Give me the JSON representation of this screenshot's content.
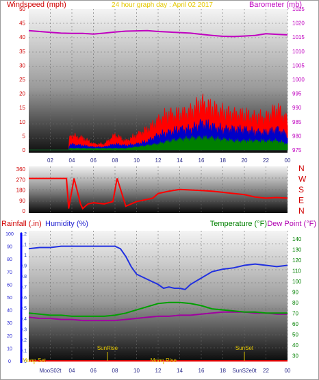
{
  "chart_data": [
    {
      "type": "line",
      "title": "24 hour graph day : April 02 2017",
      "left_axis_label": "Windspeed (mph)",
      "right_axis_label": "Barometer (mb)",
      "x_ticks": [
        "02",
        "04",
        "06",
        "08",
        "10",
        "12",
        "14",
        "16",
        "18",
        "20",
        "22",
        "00"
      ],
      "wind_ticks": [
        "0",
        "5",
        "10",
        "15",
        "20",
        "25",
        "30",
        "35",
        "40",
        "45",
        "50"
      ],
      "baro_ticks": [
        "975",
        "980",
        "985",
        "990",
        "995",
        "1000",
        "1005",
        "1010",
        "1015",
        "1020",
        "1025"
      ],
      "wind_ylim": [
        0,
        50
      ],
      "baro_ylim": [
        975,
        1025
      ],
      "x_hours": [
        0,
        24
      ],
      "barometer": {
        "color": "#c000c0",
        "x": [
          0,
          1,
          2,
          3,
          4,
          5,
          6,
          7,
          8,
          9,
          10,
          11,
          12,
          13,
          14,
          15,
          16,
          17,
          18,
          19,
          20,
          21,
          22,
          23,
          24
        ],
        "y": [
          1017.3,
          1017.0,
          1016.7,
          1016.4,
          1016.3,
          1016.3,
          1016.1,
          1016.4,
          1016.8,
          1017.1,
          1017.2,
          1017.3,
          1017.0,
          1016.8,
          1016.6,
          1016.4,
          1016.0,
          1015.6,
          1015.3,
          1015.2,
          1015.4,
          1015.6,
          1016.2,
          1016.0,
          1015.8
        ]
      },
      "wind_series": [
        {
          "name": "gust",
          "color": "#ff0000",
          "x": [
            0,
            3.7,
            3.8,
            5,
            6,
            7,
            8,
            9,
            10,
            11,
            12,
            13,
            14,
            15,
            16,
            17,
            18,
            19,
            20,
            21,
            22,
            23,
            24
          ],
          "y": [
            0,
            0,
            5,
            4,
            2,
            2,
            5,
            3,
            5,
            7,
            10,
            12,
            12,
            13,
            16,
            14,
            13,
            12,
            12,
            11,
            11,
            14,
            10
          ]
        },
        {
          "name": "average",
          "color": "#0000c8",
          "x": [
            0,
            3.7,
            3.8,
            5,
            6,
            7,
            8,
            9,
            10,
            11,
            12,
            13,
            14,
            15,
            16,
            17,
            18,
            19,
            20,
            21,
            22,
            23,
            24
          ],
          "y": [
            0,
            0,
            2,
            1.5,
            1,
            1,
            2,
            1.5,
            2,
            3,
            5,
            6,
            7,
            7,
            9,
            8,
            7,
            7,
            7,
            6,
            6,
            7,
            5
          ]
        },
        {
          "name": "lull",
          "color": "#008000",
          "x": [
            0,
            3.7,
            3.8,
            5,
            6,
            7,
            8,
            9,
            10,
            11,
            12,
            13,
            14,
            15,
            16,
            17,
            18,
            19,
            20,
            21,
            22,
            23,
            24
          ],
          "y": [
            0,
            0,
            0.5,
            0.5,
            0.5,
            0.5,
            0.5,
            0.5,
            1,
            1.5,
            2,
            3,
            3.5,
            4,
            4,
            4,
            3.5,
            3,
            3,
            3,
            3,
            3,
            2
          ]
        }
      ]
    },
    {
      "type": "line",
      "right_labels": [
        "N",
        "W",
        "S",
        "E",
        "N"
      ],
      "y_ticks": [
        "360",
        "270",
        "180",
        "90",
        "0"
      ],
      "ylim": [
        0,
        360
      ],
      "direction": {
        "color": "#ff0000",
        "x": [
          0,
          3.5,
          3.7,
          4.2,
          4.8,
          5,
          5.5,
          6,
          7,
          7.8,
          8.2,
          9,
          10,
          11,
          11.5,
          12,
          13,
          14,
          15,
          16,
          17,
          18,
          19,
          20,
          21,
          22,
          23,
          24
        ],
        "y": [
          280,
          280,
          20,
          280,
          60,
          20,
          60,
          70,
          60,
          80,
          280,
          40,
          80,
          100,
          110,
          150,
          170,
          185,
          180,
          175,
          170,
          160,
          150,
          140,
          120,
          110,
          115,
          110
        ]
      }
    },
    {
      "type": "line",
      "labels": {
        "rain": "Rainfall (.in)",
        "humidity": "Humidity (%)",
        "temperature": "Temperature (°F)",
        "dewpoint": "Dew Point (°F)"
      },
      "humidity_ticks": [
        "0",
        "10",
        "20",
        "30",
        "40",
        "50",
        "60",
        "70",
        "80",
        "90",
        "100"
      ],
      "rain_ticks": [
        "0",
        "0.1",
        "0.2",
        "0.3",
        "0.4",
        "0.5",
        "0.6",
        "0.7",
        "0.8",
        "0.9",
        "1",
        "1.1",
        "1.2"
      ],
      "temp_ticks": [
        "30",
        "40",
        "50",
        "60",
        "70",
        "80",
        "90",
        "100",
        "110",
        "120",
        "130",
        "140"
      ],
      "x_ticks": [
        "02",
        "04",
        "06",
        "08",
        "10",
        "12",
        "14",
        "16",
        "18",
        "20",
        "22",
        "00"
      ],
      "humidity_ylim": [
        0,
        100
      ],
      "rain_ylim": [
        0,
        1.2
      ],
      "temp_ylim": [
        25,
        145
      ],
      "humidity": {
        "color": "#2030e0",
        "x": [
          0,
          1,
          2,
          3,
          4,
          5,
          6,
          7,
          8,
          8.5,
          9,
          9.5,
          10,
          11,
          12,
          12.5,
          13,
          13.5,
          14,
          14.5,
          15,
          16,
          17,
          18,
          19,
          20,
          21,
          22,
          23,
          24
        ],
        "y": [
          88,
          89,
          89,
          90,
          90,
          90,
          90,
          90,
          90,
          88,
          82,
          74,
          68,
          64,
          60,
          57,
          58,
          57,
          57,
          56,
          60,
          65,
          70,
          72,
          73,
          75,
          76,
          75,
          74,
          75
        ]
      },
      "temperature": {
        "color": "#00a000",
        "x": [
          0,
          1,
          2,
          3,
          4,
          5,
          6,
          7,
          8,
          9,
          10,
          11,
          12,
          13,
          14,
          15,
          16,
          17,
          18,
          19,
          20,
          21,
          22,
          23,
          24
        ],
        "y": [
          70,
          69,
          68,
          68,
          67,
          67,
          67,
          67,
          68,
          70,
          73,
          76,
          79,
          80,
          80,
          79,
          77,
          74,
          73,
          72,
          71,
          71,
          70,
          70,
          70
        ]
      },
      "dewpoint": {
        "color": "#a000a0",
        "x": [
          0,
          1,
          2,
          3,
          4,
          5,
          6,
          7,
          8,
          9,
          10,
          11,
          12,
          13,
          14,
          15,
          16,
          17,
          18,
          19,
          20,
          21,
          22,
          23,
          24
        ],
        "y": [
          66,
          65,
          65,
          64,
          64,
          63,
          63,
          63,
          63,
          64,
          65,
          66,
          67,
          67,
          68,
          68,
          69,
          70,
          71,
          71,
          71,
          70,
          70,
          69,
          69
        ]
      },
      "rain": {
        "color": "#e00000",
        "x": [
          0,
          24
        ],
        "y": [
          0,
          0
        ]
      },
      "astro_events": [
        {
          "label": "Moon Set",
          "hour": 0.5,
          "row": "bottom"
        },
        {
          "label": "SunRise",
          "hour": 7.3,
          "row": "top"
        },
        {
          "label": "Moon Rise",
          "hour": 12.5,
          "row": "bottom"
        },
        {
          "label": "SunSet",
          "hour": 20.0,
          "row": "top"
        }
      ],
      "overlay_ticks": [
        "MooS02t",
        "SunS2e0t"
      ]
    }
  ]
}
